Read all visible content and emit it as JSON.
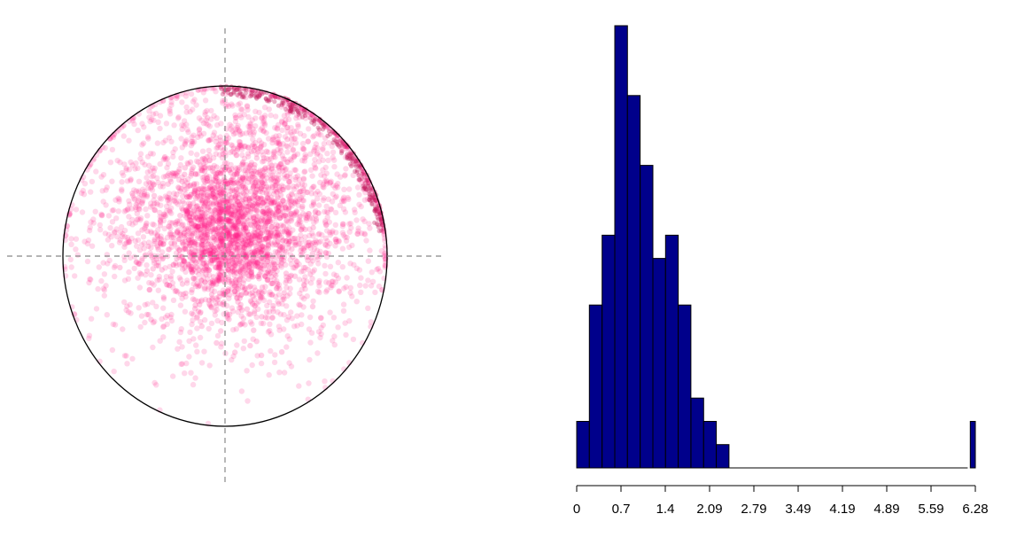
{
  "chart_data": [
    {
      "type": "scatter",
      "title": "",
      "xlabel": "",
      "ylabel": "",
      "shape": "unit-circle",
      "center": [
        0,
        0
      ],
      "radius": 1,
      "xlim": [
        -1.2,
        1.2
      ],
      "ylim": [
        -1.4,
        1.4
      ],
      "grid": false,
      "reference_lines": [
        "x = 0",
        "y = 0"
      ],
      "reference_line_style": "dashed",
      "point_color": "#ff1f8a",
      "point_opacity": 0.18,
      "cloud": {
        "centroid": [
          0.1,
          0.25
        ],
        "spread": [
          0.45,
          0.38
        ],
        "rim_cluster": {
          "angle_from": 0.15,
          "angle_to": 1.6,
          "radius_min": 0.94
        }
      }
    },
    {
      "type": "bar",
      "subtype": "histogram",
      "title": "",
      "xlabel": "",
      "ylabel": "",
      "xlim": [
        0,
        6.28
      ],
      "ylim": [
        0,
        19
      ],
      "bin_width": 0.2,
      "bin_start": 0,
      "values": [
        2,
        7,
        10,
        19,
        16,
        13,
        9,
        10,
        7,
        3,
        2,
        1,
        0,
        0,
        0,
        0,
        0,
        0,
        0,
        0,
        0,
        0,
        0,
        0,
        0,
        0,
        0,
        0,
        0,
        0,
        0,
        2
      ],
      "xticks": [
        "0",
        "0.7",
        "1.4",
        "2.09",
        "2.79",
        "3.49",
        "4.19",
        "4.89",
        "5.59",
        "6.28"
      ],
      "bar_color": "#00008b",
      "edge_color": "#000000",
      "grid": false,
      "legend": "none"
    }
  ]
}
